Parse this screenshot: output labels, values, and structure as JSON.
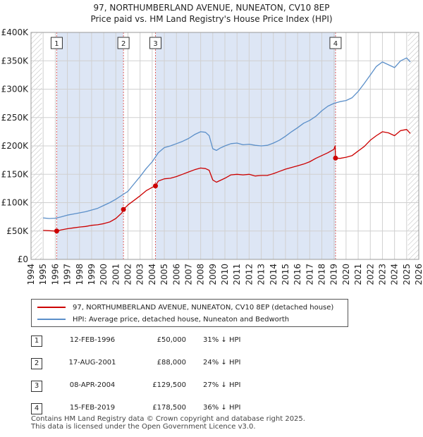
{
  "title_line1": "97, NORTHUMBERLAND AVENUE, NUNEATON, CV10 8EP",
  "title_line2": "Price paid vs. HM Land Registry's House Price Index (HPI)",
  "colors": {
    "property": "#cc0000",
    "hpi": "#5b8fc9",
    "shade": "#dde6f5",
    "grid": "#d0d0d0",
    "vline": "#e06060"
  },
  "chart_data": {
    "type": "line",
    "title": "97, NORTHUMBERLAND AVENUE, NUNEATON, CV10 8EP",
    "subtitle": "Price paid vs. HM Land Registry's House Price Index (HPI)",
    "xlabel": "",
    "ylabel": "",
    "xlim": [
      1994,
      2026
    ],
    "ylim": [
      0,
      400000
    ],
    "grid": true,
    "x_ticks": [
      "1994",
      "1995",
      "1996",
      "1997",
      "1998",
      "1999",
      "2000",
      "2001",
      "2002",
      "2003",
      "2004",
      "2005",
      "2006",
      "2007",
      "2008",
      "2009",
      "2010",
      "2011",
      "2012",
      "2013",
      "2014",
      "2015",
      "2016",
      "2017",
      "2018",
      "2019",
      "2020",
      "2021",
      "2022",
      "2023",
      "2024",
      "2025",
      "2026"
    ],
    "y_ticks": [
      {
        "value": 0,
        "label": "£0"
      },
      {
        "value": 50000,
        "label": "£50K"
      },
      {
        "value": 100000,
        "label": "£100K"
      },
      {
        "value": 150000,
        "label": "£150K"
      },
      {
        "value": 200000,
        "label": "£200K"
      },
      {
        "value": 250000,
        "label": "£250K"
      },
      {
        "value": 300000,
        "label": "£300K"
      },
      {
        "value": 350000,
        "label": "£350K"
      },
      {
        "value": 400000,
        "label": "£400K"
      }
    ],
    "shaded_ranges": [
      [
        1996.12,
        2001.63
      ],
      [
        2004.27,
        2019.13
      ]
    ],
    "hatched_ranges": [
      [
        1994.0,
        1994.9
      ],
      [
        2025.1,
        2026.0
      ]
    ],
    "series": [
      {
        "name": "97, NORTHUMBERLAND AVENUE, NUNEATON, CV10 8EP (detached house)",
        "x": [
          1995.0,
          1995.5,
          1996.0,
          1996.12,
          1996.5,
          1997.0,
          1997.5,
          1998.0,
          1998.5,
          1999.0,
          1999.5,
          2000.0,
          2000.5,
          2001.0,
          2001.5,
          2001.63,
          2002.0,
          2002.5,
          2003.0,
          2003.5,
          2004.0,
          2004.27,
          2004.5,
          2005.0,
          2005.5,
          2006.0,
          2006.5,
          2007.0,
          2007.5,
          2008.0,
          2008.4,
          2008.7,
          2009.0,
          2009.3,
          2009.6,
          2010.0,
          2010.5,
          2011.0,
          2011.5,
          2012.0,
          2012.5,
          2013.0,
          2013.5,
          2014.0,
          2014.5,
          2015.0,
          2015.5,
          2016.0,
          2016.5,
          2017.0,
          2017.5,
          2018.0,
          2018.5,
          2019.0,
          2019.1,
          2019.13,
          2019.5,
          2020.0,
          2020.5,
          2021.0,
          2021.5,
          2022.0,
          2022.5,
          2023.0,
          2023.5,
          2024.0,
          2024.5,
          2025.0,
          2025.3
        ],
        "values": [
          51000,
          50500,
          50000,
          50000,
          52000,
          54000,
          55500,
          57000,
          58000,
          60000,
          61000,
          63000,
          66000,
          72000,
          82000,
          88000,
          96000,
          104000,
          112000,
          121000,
          127000,
          129500,
          138000,
          142000,
          143000,
          146000,
          150000,
          154000,
          158000,
          161000,
          160000,
          157000,
          140000,
          136000,
          139000,
          143000,
          149000,
          150000,
          149000,
          150000,
          147000,
          148000,
          148000,
          151000,
          155000,
          159000,
          162000,
          165000,
          168000,
          172000,
          178000,
          183000,
          188000,
          194000,
          200000,
          178500,
          178000,
          180000,
          183000,
          191000,
          199000,
          210000,
          218000,
          225000,
          223000,
          218000,
          227000,
          229000,
          222000
        ]
      },
      {
        "name": "HPI: Average price, detached house, Nuneaton and Bedworth",
        "x": [
          1995.0,
          1995.5,
          1996.0,
          1996.5,
          1997.0,
          1997.5,
          1998.0,
          1998.5,
          1999.0,
          1999.5,
          2000.0,
          2000.5,
          2001.0,
          2001.5,
          2002.0,
          2002.5,
          2003.0,
          2003.5,
          2004.0,
          2004.5,
          2005.0,
          2005.5,
          2006.0,
          2006.5,
          2007.0,
          2007.5,
          2008.0,
          2008.4,
          2008.7,
          2009.0,
          2009.3,
          2009.6,
          2010.0,
          2010.5,
          2011.0,
          2011.5,
          2012.0,
          2012.5,
          2013.0,
          2013.5,
          2014.0,
          2014.5,
          2015.0,
          2015.5,
          2016.0,
          2016.5,
          2017.0,
          2017.5,
          2018.0,
          2018.5,
          2019.0,
          2019.5,
          2020.0,
          2020.5,
          2021.0,
          2021.5,
          2022.0,
          2022.5,
          2023.0,
          2023.5,
          2024.0,
          2024.5,
          2025.0,
          2025.3
        ],
        "values": [
          73000,
          72000,
          72500,
          75000,
          78000,
          80000,
          82000,
          84000,
          87000,
          90000,
          95000,
          100000,
          106000,
          113000,
          120000,
          133000,
          146000,
          160000,
          172000,
          188000,
          197000,
          200000,
          204000,
          208000,
          213000,
          220000,
          225000,
          224000,
          218000,
          195000,
          192000,
          196000,
          200000,
          204000,
          205000,
          202000,
          203000,
          201000,
          200000,
          201000,
          205000,
          210000,
          217000,
          225000,
          232000,
          240000,
          245000,
          252000,
          262000,
          270000,
          275000,
          278000,
          280000,
          285000,
          296000,
          310000,
          325000,
          340000,
          348000,
          343000,
          338000,
          350000,
          355000,
          348000
        ]
      }
    ],
    "transactions": [
      {
        "label": "1",
        "x": 1996.12,
        "price": 50000
      },
      {
        "label": "2",
        "x": 2001.63,
        "price": 88000
      },
      {
        "label": "3",
        "x": 2004.27,
        "price": 129500
      },
      {
        "label": "4",
        "x": 2019.13,
        "price": 178500
      }
    ]
  },
  "legend": {
    "property": "97, NORTHUMBERLAND AVENUE, NUNEATON, CV10 8EP (detached house)",
    "hpi": "HPI: Average price, detached house, Nuneaton and Bedworth"
  },
  "table": [
    {
      "num": "1",
      "date": "12-FEB-1996",
      "price": "£50,000",
      "rel": "31% ↓ HPI"
    },
    {
      "num": "2",
      "date": "17-AUG-2001",
      "price": "£88,000",
      "rel": "24% ↓ HPI"
    },
    {
      "num": "3",
      "date": "08-APR-2004",
      "price": "£129,500",
      "rel": "27% ↓ HPI"
    },
    {
      "num": "4",
      "date": "15-FEB-2019",
      "price": "£178,500",
      "rel": "36% ↓ HPI"
    }
  ],
  "footer": {
    "line1": "Contains HM Land Registry data © Crown copyright and database right 2025.",
    "line2": "This data is licensed under the Open Government Licence v3.0."
  }
}
